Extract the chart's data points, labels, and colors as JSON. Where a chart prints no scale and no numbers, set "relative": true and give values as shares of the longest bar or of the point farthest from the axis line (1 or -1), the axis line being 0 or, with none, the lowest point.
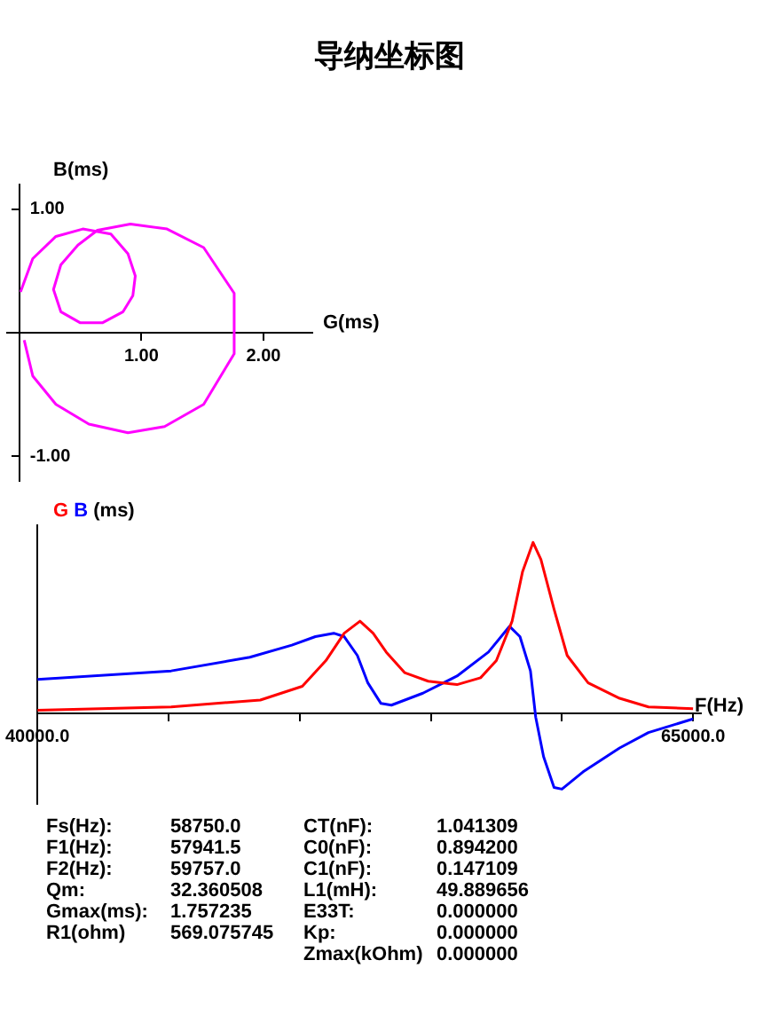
{
  "chart_data": [
    {
      "type": "line",
      "title": "导纳坐标图",
      "xlabel": "G(ms)",
      "ylabel": "B(ms)",
      "marker": "none",
      "legend": false,
      "grid": false,
      "xlim": [
        -0.1,
        2.4
      ],
      "ylim": [
        -1.2,
        1.2
      ],
      "xticks": [
        {
          "value": 1,
          "label": "1.00"
        },
        {
          "value": 2,
          "label": "2.00"
        }
      ],
      "yticks": [
        {
          "value": -1,
          "label": "-1.00"
        },
        {
          "value": 1,
          "label": "1.00"
        }
      ],
      "series": [
        {
          "color": "#ff00ff",
          "x": [
            0.01,
            0.11,
            0.3,
            0.52,
            0.75,
            0.89,
            0.95,
            0.93,
            0.85,
            0.68,
            0.5,
            0.34,
            0.28,
            0.34,
            0.48,
            0.64,
            0.91,
            1.21,
            1.51,
            1.76,
            1.76,
            1.51,
            1.19,
            0.89,
            0.57,
            0.3,
            0.11,
            0.04
          ],
          "values": [
            0.33,
            0.6,
            0.78,
            0.84,
            0.8,
            0.64,
            0.46,
            0.3,
            0.17,
            0.08,
            0.08,
            0.17,
            0.35,
            0.55,
            0.71,
            0.83,
            0.88,
            0.84,
            0.69,
            0.32,
            -0.17,
            -0.58,
            -0.76,
            -0.81,
            -0.74,
            -0.58,
            -0.35,
            -0.06
          ]
        }
      ]
    },
    {
      "type": "line",
      "relative": true,
      "xlabel": "F(Hz)",
      "ylabel": "(ms)",
      "marker": "none",
      "legend": false,
      "grid": false,
      "tick_labels": "x",
      "xlim": [
        40000,
        65300
      ],
      "xticks": [
        {
          "value": 40000,
          "label": "40000.0"
        },
        {
          "value": 45000,
          "label": null
        },
        {
          "value": 50000,
          "label": null
        },
        {
          "value": 55000,
          "label": null
        },
        {
          "value": 60000,
          "label": null
        },
        {
          "value": 65000,
          "label": "65000.0"
        }
      ],
      "series": [
        {
          "name": "G",
          "color": "#ff0000",
          "x": [
            40000,
            45100,
            48500,
            50100,
            51000,
            51700,
            52300,
            52800,
            53300,
            54000,
            54900,
            56000,
            56900,
            57500,
            58100,
            58500,
            58900,
            59200,
            59700,
            60200,
            61000,
            62200,
            63300,
            65000
          ],
          "values": [
            0.02,
            0.04,
            0.08,
            0.16,
            0.31,
            0.47,
            0.54,
            0.47,
            0.36,
            0.24,
            0.19,
            0.17,
            0.21,
            0.31,
            0.54,
            0.83,
            1,
            0.9,
            0.61,
            0.34,
            0.18,
            0.09,
            0.04,
            0.03
          ]
        },
        {
          "name": "B",
          "color": "#0000ff",
          "x": [
            40000,
            45100,
            48100,
            49700,
            50600,
            51300,
            51700,
            52200,
            52600,
            53100,
            53500,
            54700,
            56000,
            57200,
            58000,
            58400,
            58800,
            59000,
            59300,
            59700,
            60000,
            60800,
            62200,
            63300,
            65000
          ],
          "values": [
            0.2,
            0.25,
            0.33,
            0.4,
            0.45,
            0.47,
            0.45,
            0.34,
            0.18,
            0.06,
            0.05,
            0.12,
            0.22,
            0.36,
            0.51,
            0.45,
            0.25,
            -0.02,
            -0.25,
            -0.43,
            -0.44,
            -0.34,
            -0.2,
            -0.11,
            -0.03
          ]
        }
      ],
      "annotations": [
        "Fs(Hz):",
        "58750.0",
        "CT(nF):",
        "1.041309",
        "F1(Hz):",
        "57941.5",
        "C0(nF):",
        "0.894200",
        "F2(Hz):",
        "59757.0",
        "C1(nF):",
        "0.147109",
        "Qm:",
        "32.360508",
        "L1(mH):",
        "49.889656",
        "Gmax(ms):",
        "1.757235",
        "E33T:",
        "0.000000",
        "R1(ohm)",
        "569.075745",
        "Kp:",
        "0.000000",
        "Zmax(kOhm)",
        "0.000000"
      ]
    }
  ]
}
